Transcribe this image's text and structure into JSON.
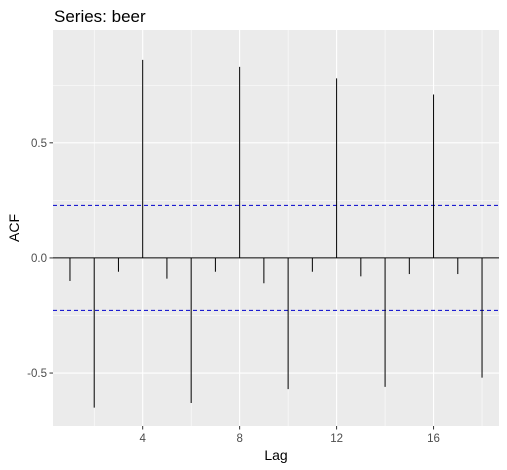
{
  "chart_data": {
    "type": "bar",
    "title": "Series: beer",
    "xlabel": "Lag",
    "ylabel": "ACF",
    "x": [
      1,
      2,
      3,
      4,
      5,
      6,
      7,
      8,
      9,
      10,
      11,
      12,
      13,
      14,
      15,
      16,
      17,
      18
    ],
    "values": [
      -0.1,
      -0.65,
      -0.06,
      0.86,
      -0.09,
      -0.63,
      -0.06,
      0.83,
      -0.11,
      -0.57,
      -0.06,
      0.78,
      -0.08,
      -0.56,
      -0.07,
      0.71,
      -0.07,
      -0.52
    ],
    "xlim": [
      0.3,
      18.7
    ],
    "ylim": [
      -0.73,
      0.99
    ],
    "xticks": [
      4,
      8,
      12,
      16
    ],
    "xtick_labels": [
      "4",
      "8",
      "12",
      "16"
    ],
    "yticks": [
      -0.5,
      0.0,
      0.5
    ],
    "ytick_labels": [
      "-0.5",
      "0.0",
      "0.5"
    ],
    "confidence_bounds": [
      0.228,
      -0.228
    ],
    "grid": true,
    "colors": {
      "panel": "#ebebeb",
      "grid_major": "#ffffff",
      "spike": "#000000",
      "bound": "#0000cc",
      "tick_label": "#4d4d4d"
    }
  }
}
